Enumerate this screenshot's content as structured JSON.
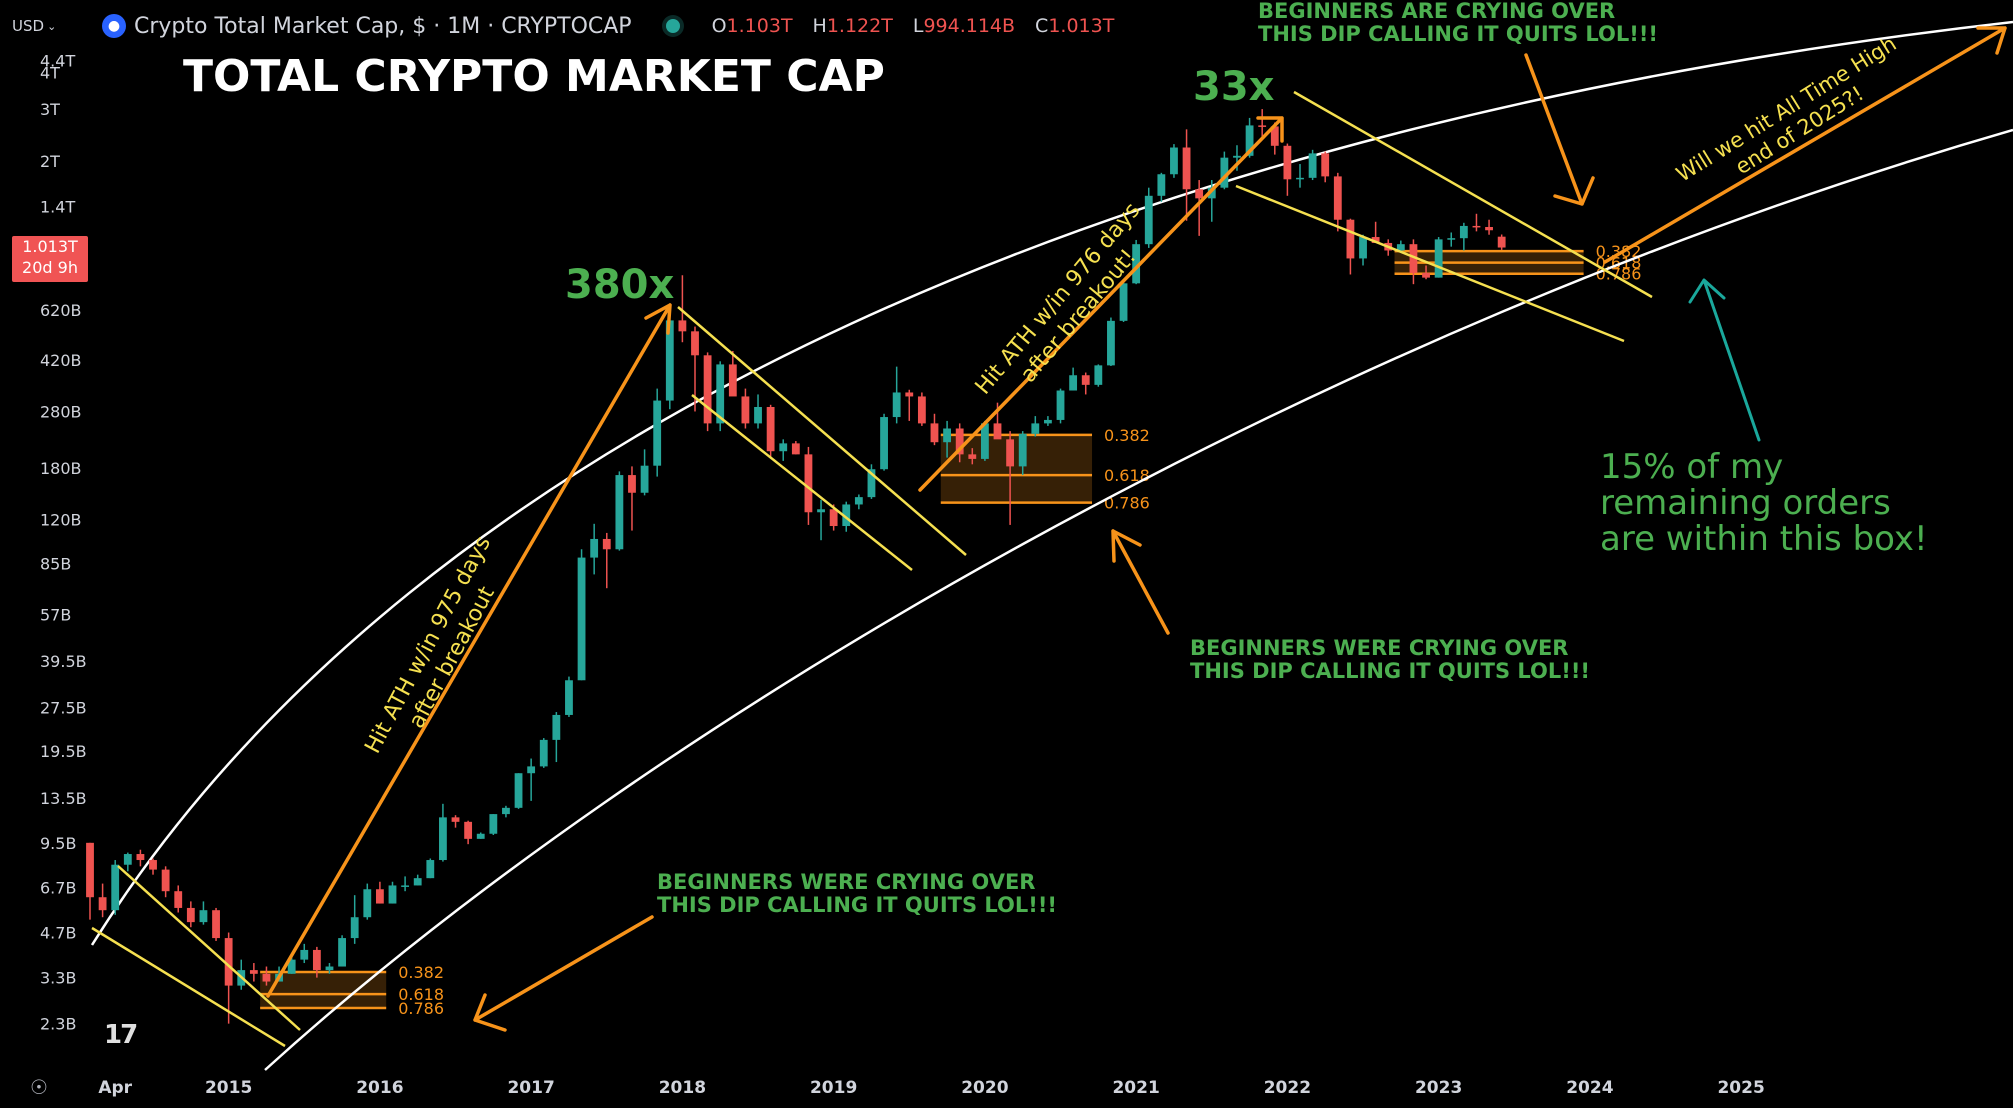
{
  "header": {
    "currency": "USD",
    "symbol_icon": "coin-icon",
    "symbol": "Crypto Total Market Cap, $ · 1M · CRYPTOCAP",
    "status_dot_color": "#26a69a",
    "ohlc": {
      "o_label": "O",
      "o_value": "1.103T",
      "h_label": "H",
      "h_value": "1.122T",
      "l_label": "L",
      "l_value": "994.114B",
      "c_label": "C",
      "c_value": "1.013T"
    }
  },
  "last_price": {
    "value": "1.013T",
    "countdown": "20d 9h",
    "color": "#f05454"
  },
  "chart_data": {
    "type": "candlestick",
    "title": "TOTAL CRYPTO MARKET CAP",
    "y_scale": "log",
    "y_ticks": [
      "4.4T",
      "4T",
      "3T",
      "2T",
      "1.4T",
      "1T",
      "620B",
      "420B",
      "280B",
      "180B",
      "120B",
      "85B",
      "57B",
      "39.5B",
      "27.5B",
      "19.5B",
      "13.5B",
      "9.5B",
      "6.7B",
      "4.7B",
      "3.3B",
      "2.3B"
    ],
    "y_tick_values": [
      4400000000000.0,
      4000000000000.0,
      3000000000000.0,
      2000000000000.0,
      1400000000000.0,
      1000000000000.0,
      620000000000.0,
      420000000000.0,
      280000000000.0,
      180000000000.0,
      120000000000.0,
      85000000000.0,
      57000000000.0,
      39500000000.0,
      27500000000.0,
      19500000000.0,
      13500000000.0,
      9500000000.0,
      6700000000.0,
      4700000000.0,
      3300000000.0,
      2300000000.0
    ],
    "y_range_b": [
      1.9,
      5000
    ],
    "x_ticks": [
      "Apr",
      "2015",
      "2016",
      "2017",
      "2018",
      "2019",
      "2020",
      "2021",
      "2022",
      "2023",
      "2024",
      "2025"
    ],
    "x_tick_dates": [
      "2014-04",
      "2015-01",
      "2016-01",
      "2017-01",
      "2018-01",
      "2019-01",
      "2020-01",
      "2021-01",
      "2022-01",
      "2023-01",
      "2024-01",
      "2025-01"
    ],
    "x_range": [
      "2014-02",
      "2026-02"
    ],
    "colors": {
      "up": "#26a69a",
      "down": "#ef5350",
      "wick_up": "#26a69a",
      "wick_down": "#ef5350"
    },
    "units": "billions USD (approx.)",
    "candles": [
      [
        "2014-02",
        9.5,
        9.5,
        5.2,
        6.2
      ],
      [
        "2014-03",
        6.2,
        6.9,
        5.3,
        5.6
      ],
      [
        "2014-04",
        5.6,
        8.3,
        5.4,
        8.0
      ],
      [
        "2014-05",
        8.0,
        8.8,
        7.6,
        8.7
      ],
      [
        "2014-06",
        8.7,
        9.0,
        7.9,
        8.3
      ],
      [
        "2014-07",
        8.3,
        8.4,
        7.4,
        7.7
      ],
      [
        "2014-08",
        7.7,
        7.9,
        6.2,
        6.5
      ],
      [
        "2014-09",
        6.5,
        6.8,
        5.5,
        5.7
      ],
      [
        "2014-10",
        5.7,
        6.0,
        4.9,
        5.1
      ],
      [
        "2014-11",
        5.1,
        6.0,
        5.0,
        5.6
      ],
      [
        "2014-12",
        5.6,
        5.7,
        4.4,
        4.5
      ],
      [
        "2015-01",
        4.5,
        4.7,
        2.3,
        3.1
      ],
      [
        "2015-02",
        3.1,
        3.8,
        3.0,
        3.5
      ],
      [
        "2015-03",
        3.5,
        3.7,
        3.2,
        3.4
      ],
      [
        "2015-04",
        3.4,
        3.6,
        3.1,
        3.2
      ],
      [
        "2015-05",
        3.2,
        3.6,
        3.2,
        3.4
      ],
      [
        "2015-06",
        3.4,
        3.9,
        3.4,
        3.8
      ],
      [
        "2015-07",
        3.8,
        4.3,
        3.7,
        4.1
      ],
      [
        "2015-08",
        4.1,
        4.2,
        3.3,
        3.5
      ],
      [
        "2015-09",
        3.5,
        3.7,
        3.4,
        3.6
      ],
      [
        "2015-10",
        3.6,
        4.6,
        3.6,
        4.5
      ],
      [
        "2015-11",
        4.5,
        6.3,
        4.3,
        5.3
      ],
      [
        "2015-12",
        5.3,
        6.9,
        5.2,
        6.6
      ],
      [
        "2016-01",
        6.6,
        7.0,
        5.9,
        5.9
      ],
      [
        "2016-02",
        5.9,
        7.0,
        5.9,
        6.8
      ],
      [
        "2016-03",
        6.8,
        7.3,
        6.5,
        6.8
      ],
      [
        "2016-04",
        6.8,
        7.4,
        6.8,
        7.2
      ],
      [
        "2016-05",
        7.2,
        8.4,
        7.2,
        8.3
      ],
      [
        "2016-06",
        8.3,
        12.9,
        8.2,
        11.6
      ],
      [
        "2016-07",
        11.6,
        11.8,
        10.7,
        11.2
      ],
      [
        "2016-08",
        11.2,
        11.3,
        9.4,
        9.8
      ],
      [
        "2016-09",
        9.8,
        10.3,
        9.8,
        10.2
      ],
      [
        "2016-10",
        10.2,
        11.9,
        10.1,
        11.9
      ],
      [
        "2016-11",
        11.9,
        12.7,
        11.6,
        12.5
      ],
      [
        "2016-12",
        12.5,
        16.4,
        12.4,
        16.4
      ],
      [
        "2017-01",
        16.4,
        18.4,
        13.2,
        17.3
      ],
      [
        "2017-02",
        17.3,
        21.6,
        17.1,
        21.3
      ],
      [
        "2017-03",
        21.3,
        26.5,
        17.9,
        25.9
      ],
      [
        "2017-04",
        25.9,
        35.0,
        25.5,
        34.0
      ],
      [
        "2017-05",
        34.0,
        95.0,
        34.0,
        89.0
      ],
      [
        "2017-06",
        89.0,
        116.0,
        78.0,
        103.0
      ],
      [
        "2017-07",
        103.0,
        108.0,
        70.0,
        95.0
      ],
      [
        "2017-08",
        95.0,
        175.0,
        94.0,
        170.0
      ],
      [
        "2017-09",
        170.0,
        182.0,
        110.0,
        148.0
      ],
      [
        "2017-10",
        148.0,
        208.0,
        145.0,
        183.0
      ],
      [
        "2017-11",
        183.0,
        335.0,
        168.0,
        305.0
      ],
      [
        "2017-12",
        305.0,
        635.0,
        285.0,
        572.0
      ],
      [
        "2018-01",
        572.0,
        815.0,
        482.0,
        525.0
      ],
      [
        "2018-02",
        525.0,
        545.0,
        280.0,
        435.0
      ],
      [
        "2018-03",
        435.0,
        445.0,
        240.0,
        255.0
      ],
      [
        "2018-04",
        255.0,
        415.0,
        240.0,
        405.0
      ],
      [
        "2018-05",
        405.0,
        450.0,
        320.0,
        315.0
      ],
      [
        "2018-06",
        315.0,
        335.0,
        245.0,
        255.0
      ],
      [
        "2018-07",
        255.0,
        320.0,
        245.0,
        290.0
      ],
      [
        "2018-08",
        290.0,
        295.0,
        195.0,
        205.0
      ],
      [
        "2018-09",
        205.0,
        225.0,
        190.0,
        218.0
      ],
      [
        "2018-10",
        218.0,
        222.0,
        200.0,
        200.0
      ],
      [
        "2018-11",
        200.0,
        212.0,
        115.0,
        127.0
      ],
      [
        "2018-12",
        127.0,
        140.0,
        102.0,
        130.0
      ],
      [
        "2019-01",
        130.0,
        135.0,
        110.0,
        114.0
      ],
      [
        "2019-02",
        114.0,
        138.0,
        109.0,
        135.0
      ],
      [
        "2019-03",
        135.0,
        146.0,
        130.0,
        143.0
      ],
      [
        "2019-04",
        143.0,
        185.0,
        141.0,
        178.0
      ],
      [
        "2019-05",
        178.0,
        275.0,
        176.0,
        268.0
      ],
      [
        "2019-06",
        268.0,
        398.0,
        255.0,
        325.0
      ],
      [
        "2019-07",
        325.0,
        332.0,
        260.0,
        315.0
      ],
      [
        "2019-08",
        315.0,
        325.0,
        250.0,
        255.0
      ],
      [
        "2019-09",
        255.0,
        275.0,
        215.0,
        220.0
      ],
      [
        "2019-10",
        220.0,
        260.0,
        195.0,
        245.0
      ],
      [
        "2019-11",
        245.0,
        255.0,
        188.0,
        200.0
      ],
      [
        "2019-12",
        200.0,
        210.0,
        185.0,
        193.0
      ],
      [
        "2020-01",
        193.0,
        260.0,
        190.0,
        255.0
      ],
      [
        "2020-02",
        255.0,
        300.0,
        245.0,
        225.0
      ],
      [
        "2020-03",
        225.0,
        240.0,
        115.0,
        182.0
      ],
      [
        "2020-04",
        182.0,
        240.0,
        170.0,
        235.0
      ],
      [
        "2020-05",
        235.0,
        270.0,
        230.0,
        255.0
      ],
      [
        "2020-06",
        255.0,
        270.0,
        250.0,
        262.0
      ],
      [
        "2020-07",
        262.0,
        335.0,
        255.0,
        330.0
      ],
      [
        "2020-08",
        330.0,
        395.0,
        330.0,
        372.0
      ],
      [
        "2020-09",
        372.0,
        380.0,
        320.0,
        345.0
      ],
      [
        "2020-10",
        345.0,
        405.0,
        340.0,
        402.0
      ],
      [
        "2020-11",
        402.0,
        585.0,
        400.0,
        570.0
      ],
      [
        "2020-12",
        570.0,
        770.0,
        565.0,
        765.0
      ],
      [
        "2021-01",
        765.0,
        1075.0,
        760.0,
        1040.0
      ],
      [
        "2021-02",
        1040.0,
        1620.0,
        1010.0,
        1520.0
      ],
      [
        "2021-03",
        1520.0,
        1820.0,
        1450.0,
        1800.0
      ],
      [
        "2021-04",
        1800.0,
        2280.0,
        1750.0,
        2220.0
      ],
      [
        "2021-05",
        2220.0,
        2560.0,
        1250.0,
        1600.0
      ],
      [
        "2021-06",
        1600.0,
        1720.0,
        1110.0,
        1490.0
      ],
      [
        "2021-07",
        1490.0,
        1720.0,
        1240.0,
        1620.0
      ],
      [
        "2021-08",
        1620.0,
        2150.0,
        1600.0,
        2050.0
      ],
      [
        "2021-09",
        2050.0,
        2260.0,
        1850.0,
        2080.0
      ],
      [
        "2021-10",
        2080.0,
        2800.0,
        2050.0,
        2640.0
      ],
      [
        "2021-11",
        2640.0,
        3000.0,
        2420.0,
        2620.0
      ],
      [
        "2021-12",
        2620.0,
        2700.0,
        2100.0,
        2250.0
      ],
      [
        "2022-01",
        2250.0,
        2290.0,
        1520.0,
        1730.0
      ],
      [
        "2022-02",
        1730.0,
        1950.0,
        1620.0,
        1750.0
      ],
      [
        "2022-03",
        1750.0,
        2180.0,
        1720.0,
        2120.0
      ],
      [
        "2022-04",
        2120.0,
        2150.0,
        1690.0,
        1770.0
      ],
      [
        "2022-05",
        1770.0,
        1820.0,
        1150.0,
        1260.0
      ],
      [
        "2022-06",
        1260.0,
        1270.0,
        820.0,
        930.0
      ],
      [
        "2022-07",
        930.0,
        1120.0,
        880.0,
        1100.0
      ],
      [
        "2022-08",
        1100.0,
        1240.0,
        1050.0,
        1050.0
      ],
      [
        "2022-09",
        1050.0,
        1080.0,
        950.0,
        990.0
      ],
      [
        "2022-10",
        990.0,
        1070.0,
        980.0,
        1040.0
      ],
      [
        "2022-11",
        1040.0,
        1080.0,
        760.0,
        830.0
      ],
      [
        "2022-12",
        830.0,
        880.0,
        790.0,
        800.0
      ],
      [
        "2023-01",
        800.0,
        1100.0,
        800.0,
        1080.0
      ],
      [
        "2023-02",
        1080.0,
        1140.0,
        1020.0,
        1090.0
      ],
      [
        "2023-03",
        1090.0,
        1230.0,
        990.0,
        1200.0
      ],
      [
        "2023-04",
        1200.0,
        1320.0,
        1150.0,
        1190.0
      ],
      [
        "2023-05",
        1190.0,
        1260.0,
        1120.0,
        1160.0
      ],
      [
        "2023-06",
        1103.0,
        1122.0,
        994.114,
        1013.0
      ]
    ],
    "fib_boxes": [
      {
        "from": "2015-04",
        "to": "2016-01",
        "levels": [
          {
            "label": "0.382",
            "value_b": 3.45
          },
          {
            "label": "0.618",
            "value_b": 2.9
          },
          {
            "label": "0.786",
            "value_b": 2.6
          }
        ]
      },
      {
        "from": "2019-10",
        "to": "2020-09",
        "levels": [
          {
            "label": "0.382",
            "value_b": 233
          },
          {
            "label": "0.618",
            "value_b": 170
          },
          {
            "label": "0.786",
            "value_b": 137
          }
        ]
      },
      {
        "from": "2022-10",
        "to": "2023-12",
        "levels": [
          {
            "label": "0.382",
            "value_b": 985
          },
          {
            "label": "0.618",
            "value_b": 900
          },
          {
            "label": "0.786",
            "value_b": 825
          }
        ]
      }
    ],
    "annotations": [
      {
        "id": "mult-380",
        "text": "380x",
        "color": "#4caf50"
      },
      {
        "id": "mult-33",
        "text": "33x",
        "color": "#4caf50"
      },
      {
        "id": "ath-975",
        "lines": [
          "Hit ATH w/in 975 days",
          "after breakout"
        ],
        "color": "#f5e050"
      },
      {
        "id": "ath-976",
        "lines": [
          "Hit ATH w/in 976 days",
          "after breakout!"
        ],
        "color": "#f5e050"
      },
      {
        "id": "ath-2025",
        "lines": [
          "Will we hit All Time High",
          "end of 2025?!"
        ],
        "color": "#f5e050"
      },
      {
        "id": "beginners-2015",
        "lines": [
          "BEGINNERS WERE CRYING OVER",
          "THIS DIP CALLING IT QUITS LOL!!!"
        ],
        "color": "#4caf50"
      },
      {
        "id": "beginners-2020",
        "lines": [
          "BEGINNERS WERE CRYING OVER",
          "THIS DIP CALLING IT QUITS LOL!!!"
        ],
        "color": "#4caf50"
      },
      {
        "id": "beginners-2023",
        "lines": [
          "BEGINNERS ARE CRYING OVER",
          "THIS DIP CALLING IT QUITS LOL!!!"
        ],
        "color": "#4caf50"
      },
      {
        "id": "orders-box",
        "lines": [
          "15% of my",
          "remaining orders",
          "are within this box!"
        ],
        "color": "#4caf50"
      }
    ]
  },
  "branding": {
    "logo_text": "17",
    "logo_icon": "tradingview-logo-icon"
  },
  "controls": {
    "settings_icon": "settings-icon"
  }
}
